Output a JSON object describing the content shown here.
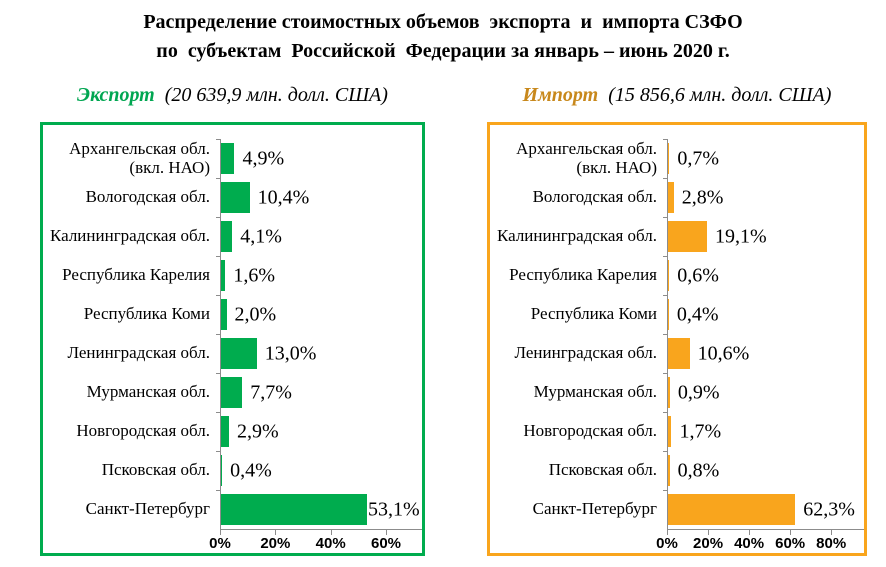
{
  "title": {
    "line1": "Распределение стоимостных объемов  экспорта  и  импорта СЗФО",
    "line2": "по  субъектам  Российской  Федерации за январь – июнь 2020 г."
  },
  "colors": {
    "export_green": "#00AC4E",
    "import_orange": "#F9A51D",
    "import_legend": "#C8881B",
    "axis_gray": "#8C8C8C",
    "text_black": "#000000"
  },
  "chart_data": [
    {
      "type": "bar",
      "orientation": "horizontal",
      "legend": "Экспорт",
      "total_label": "(20 639,9 млн. долл. США)",
      "legend_color": "#00A651",
      "bar_color": "#00AC4E",
      "border_color": "#00AC4E",
      "categories": [
        "Архангельская обл.\n(вкл. НАО)",
        "Вологодская обл.",
        "Калининградская обл.",
        "Республика Карелия",
        "Республика Коми",
        "Ленинградская обл.",
        "Мурманская обл.",
        "Новгородская обл.",
        "Псковская обл.",
        "Санкт-Петербург"
      ],
      "values": [
        4.9,
        10.4,
        4.1,
        1.6,
        2.0,
        13.0,
        7.7,
        2.9,
        0.4,
        53.1
      ],
      "value_labels": [
        "4,9%",
        "10,4%",
        "4,1%",
        "1,6%",
        "2,0%",
        "13,0%",
        "7,7%",
        "2,9%",
        "0,4%",
        "53,1%"
      ],
      "x_ticks": [
        {
          "value": 0,
          "label": "0%"
        },
        {
          "value": 20,
          "label": "20%"
        },
        {
          "value": 40,
          "label": "40%"
        },
        {
          "value": 60,
          "label": "60%"
        }
      ],
      "x_max": 73,
      "xlabel": "",
      "ylabel": "",
      "grid": false,
      "legend_position": "above"
    },
    {
      "type": "bar",
      "orientation": "horizontal",
      "legend": "Импорт",
      "total_label": "(15 856,6 млн. долл. США)",
      "legend_color": "#C8881B",
      "bar_color": "#F9A51D",
      "border_color": "#F9A51D",
      "categories": [
        "Архангельская обл.\n(вкл. НАО)",
        "Вологодская обл.",
        "Калининградская обл.",
        "Республика Карелия",
        "Республика Коми",
        "Ленинградская обл.",
        "Мурманская обл.",
        "Новгородская обл.",
        "Псковская обл.",
        "Санкт-Петербург"
      ],
      "values": [
        0.7,
        2.8,
        19.1,
        0.6,
        0.4,
        10.6,
        0.9,
        1.7,
        0.8,
        62.3
      ],
      "value_labels": [
        "0,7%",
        "2,8%",
        "19,1%",
        "0,6%",
        "0,4%",
        "10,6%",
        "0,9%",
        "1,7%",
        "0,8%",
        "62,3%"
      ],
      "x_ticks": [
        {
          "value": 0,
          "label": "0%"
        },
        {
          "value": 20,
          "label": "20%"
        },
        {
          "value": 40,
          "label": "40%"
        },
        {
          "value": 60,
          "label": "60%"
        },
        {
          "value": 80,
          "label": "80%"
        }
      ],
      "x_max": 96,
      "xlabel": "",
      "ylabel": "",
      "grid": false,
      "legend_position": "above"
    }
  ]
}
